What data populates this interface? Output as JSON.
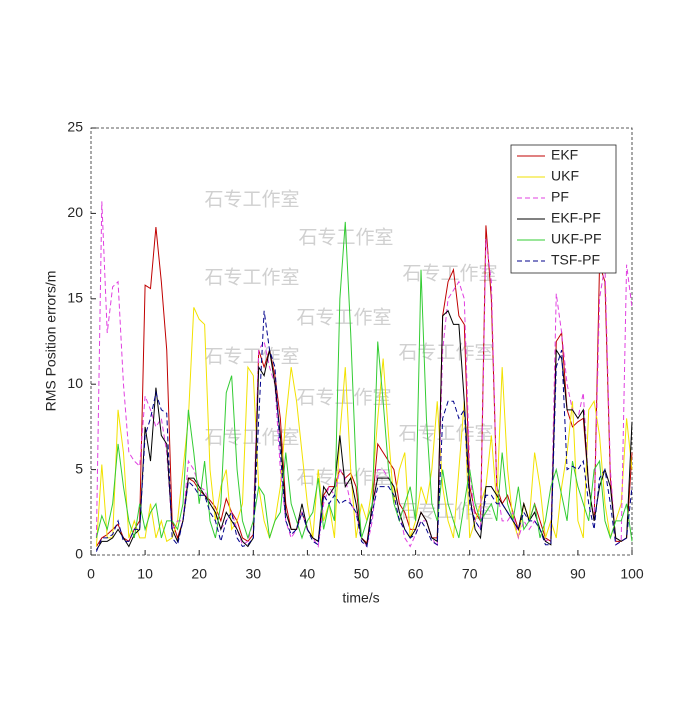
{
  "chart_data": {
    "type": "line",
    "xlabel": "time/s",
    "ylabel": "RMS Position errors/m",
    "watermark": "石专工作室",
    "xlim": [
      0,
      100
    ],
    "xticks": [
      0,
      10,
      20,
      30,
      40,
      50,
      60,
      70,
      80,
      90,
      100
    ],
    "ylim": [
      0,
      25
    ],
    "yticks": [
      0,
      5,
      10,
      15,
      20,
      25
    ],
    "legend": "upper-right",
    "x": [
      1,
      2,
      3,
      4,
      5,
      6,
      7,
      8,
      9,
      10,
      11,
      12,
      13,
      14,
      15,
      16,
      17,
      18,
      19,
      20,
      21,
      22,
      23,
      24,
      25,
      26,
      27,
      28,
      29,
      30,
      31,
      32,
      33,
      34,
      35,
      36,
      37,
      38,
      39,
      40,
      41,
      42,
      43,
      44,
      45,
      46,
      47,
      48,
      49,
      50,
      51,
      52,
      53,
      54,
      55,
      56,
      57,
      58,
      59,
      60,
      61,
      62,
      63,
      64,
      65,
      66,
      67,
      68,
      69,
      70,
      71,
      72,
      73,
      74,
      75,
      76,
      77,
      78,
      79,
      80,
      81,
      82,
      83,
      84,
      85,
      86,
      87,
      88,
      89,
      90,
      91,
      92,
      93,
      94,
      95,
      96,
      97,
      98,
      99,
      100
    ],
    "series": [
      {
        "name": "EKF",
        "color": "#c00000",
        "dashed": false,
        "values": [
          0.5,
          1,
          1.2,
          1.5,
          1.8,
          1,
          0.8,
          1.5,
          2,
          15.8,
          15.6,
          19.2,
          16,
          12,
          2,
          1,
          2,
          4.5,
          4.3,
          3.8,
          3.5,
          3.2,
          2.8,
          2,
          3.3,
          2.5,
          2,
          1,
          0.8,
          1.2,
          12,
          11,
          12,
          10.5,
          8,
          3,
          1.5,
          1.5,
          2.5,
          1.5,
          1,
          0.8,
          3.5,
          4,
          4,
          5,
          4.5,
          4.8,
          4,
          1,
          0.7,
          3,
          6.5,
          6,
          5.5,
          5,
          3,
          2.5,
          1.5,
          1.5,
          2.5,
          2,
          1,
          1,
          14,
          16,
          16.7,
          14,
          13.5,
          4,
          2.5,
          2,
          19.3,
          15,
          4,
          3,
          3.5,
          2.5,
          1.5,
          3,
          2,
          3,
          2,
          1,
          0.8,
          12.5,
          13,
          8.5,
          7.5,
          7.8,
          8,
          4,
          2,
          17,
          16,
          4.5,
          0.8,
          0.8,
          1,
          6
        ]
      },
      {
        "name": "UKF",
        "color": "#f2e200",
        "dashed": false,
        "values": [
          0.5,
          5.3,
          1,
          1,
          8.5,
          6,
          1,
          2,
          1,
          1,
          3,
          1,
          2,
          0.8,
          1,
          2,
          5,
          8,
          14.5,
          13.8,
          13.5,
          5,
          2,
          4,
          5,
          1.5,
          2,
          3,
          11,
          10.5,
          4,
          2,
          1,
          2,
          4,
          8,
          11,
          9,
          6,
          3,
          1,
          5,
          2,
          3,
          1,
          7,
          11,
          5,
          1,
          3,
          2,
          4,
          8,
          11.5,
          7,
          3,
          5,
          6,
          1,
          2,
          4,
          3,
          5,
          9,
          4,
          2,
          1,
          5,
          9,
          1,
          2,
          3,
          4,
          7,
          3,
          11,
          5,
          2,
          1,
          3,
          2,
          6,
          4,
          1,
          2,
          1,
          4,
          6,
          9,
          2,
          1,
          8.5,
          9,
          7,
          3,
          1,
          2,
          3,
          8,
          5
        ]
      },
      {
        "name": "PF",
        "color": "#e040e0",
        "dashed": true,
        "values": [
          1,
          20.7,
          13,
          15.7,
          16,
          10,
          6,
          5.5,
          5.2,
          9.3,
          8.5,
          7.5,
          8,
          6,
          1.5,
          2,
          2,
          5.5,
          5,
          4,
          3.8,
          3,
          2.5,
          1.5,
          2,
          2.5,
          1.5,
          0.6,
          0.8,
          2,
          12,
          12.5,
          11,
          10,
          5,
          2,
          1,
          1.5,
          2.5,
          1.5,
          1,
          0.5,
          3,
          4,
          3.5,
          5,
          4.5,
          3,
          2.5,
          1,
          0.5,
          2,
          5,
          5,
          4.5,
          4,
          2.5,
          1,
          0.5,
          1.2,
          2,
          2,
          1,
          0.5,
          12,
          15,
          15.5,
          16,
          15,
          5,
          2,
          1.5,
          18.5,
          16,
          4,
          2,
          2,
          2.5,
          1,
          2,
          1.5,
          2,
          1.5,
          0.8,
          1,
          15.3,
          13,
          10,
          8.5,
          8,
          9.5,
          4,
          2,
          15,
          17,
          5,
          0.6,
          0.8,
          17,
          14.5
        ]
      },
      {
        "name": "EKF-PF",
        "color": "#000000",
        "dashed": false,
        "values": [
          0.3,
          0.8,
          0.8,
          1,
          1.5,
          1,
          0.5,
          1.2,
          1.5,
          7.5,
          5.5,
          9.8,
          7,
          6.5,
          1.5,
          0.8,
          2,
          4.5,
          4.5,
          4,
          3.5,
          3,
          2.5,
          1.5,
          2.5,
          2,
          1.5,
          0.8,
          0.5,
          1,
          11,
          10.5,
          12,
          10,
          7,
          2.5,
          1.5,
          1.5,
          3,
          1.5,
          1,
          0.8,
          4,
          3.5,
          4,
          7,
          4,
          4.5,
          3,
          1,
          0.6,
          3,
          4.5,
          4.5,
          4.5,
          4,
          2.5,
          1.5,
          1,
          1.5,
          2.5,
          2,
          1,
          0.8,
          14,
          14.3,
          13.5,
          13.5,
          9,
          3.5,
          1.5,
          1,
          4,
          4,
          3.5,
          3,
          2.5,
          2,
          1.5,
          3,
          2,
          2.5,
          1.5,
          0.8,
          0.6,
          12,
          11.5,
          8.5,
          8.5,
          8,
          8.5,
          4,
          2,
          4,
          5,
          4,
          1,
          0.8,
          1,
          7.8
        ]
      },
      {
        "name": "UKF-PF",
        "color": "#33cc33",
        "dashed": false,
        "values": [
          1,
          2.3,
          1.5,
          3,
          6.5,
          4,
          2,
          1,
          3,
          1.5,
          2.5,
          3,
          1,
          2,
          2,
          1.5,
          3,
          8.5,
          6,
          3,
          5.5,
          2,
          1,
          3,
          9.5,
          10.5,
          5,
          2,
          1,
          2,
          4,
          3.5,
          1,
          2,
          2.5,
          6,
          3,
          2,
          1,
          2,
          2.5,
          4.5,
          1.5,
          3,
          2,
          15,
          19.5,
          13,
          5,
          1,
          2,
          3,
          12.5,
          9,
          5,
          3,
          2,
          3,
          4,
          2,
          16.7,
          8,
          3,
          2,
          5,
          3,
          2,
          1,
          3,
          5,
          3,
          2,
          2.5,
          3,
          2,
          6,
          3,
          2,
          4,
          1.5,
          2,
          3,
          1,
          2,
          4,
          5,
          3.5,
          2,
          5.5,
          4,
          3,
          2,
          5,
          5.5,
          2,
          1,
          2,
          2,
          3,
          0.8
        ]
      },
      {
        "name": "TSF-PF",
        "color": "#00008b",
        "dashed": true,
        "values": [
          0.2,
          1,
          1,
          1.2,
          2,
          0.8,
          0.8,
          1.5,
          1.5,
          7,
          8,
          9.5,
          8.5,
          8.3,
          1,
          0.6,
          2,
          4.3,
          4,
          3.5,
          3.5,
          2.5,
          2,
          0.8,
          2,
          2.5,
          1,
          0.5,
          0.6,
          1,
          8,
          14.3,
          12,
          11,
          6,
          2,
          1.2,
          1.5,
          2.5,
          1.5,
          0.8,
          0.6,
          3.5,
          3,
          3.5,
          3,
          3.2,
          3,
          2.5,
          0.8,
          0.5,
          2.5,
          4,
          4,
          4,
          3.5,
          2,
          1.5,
          1,
          1.2,
          2,
          1.5,
          0.8,
          0.6,
          8,
          9,
          9,
          8,
          8.5,
          3,
          2,
          1.5,
          3.5,
          3.5,
          3,
          3,
          2.5,
          2,
          1.5,
          2.5,
          2,
          2,
          1.5,
          0.6,
          0.6,
          11,
          12,
          5,
          5.2,
          5,
          5.5,
          3,
          1.5,
          4.5,
          5,
          3,
          0.6,
          0.8,
          1,
          4
        ]
      }
    ]
  }
}
